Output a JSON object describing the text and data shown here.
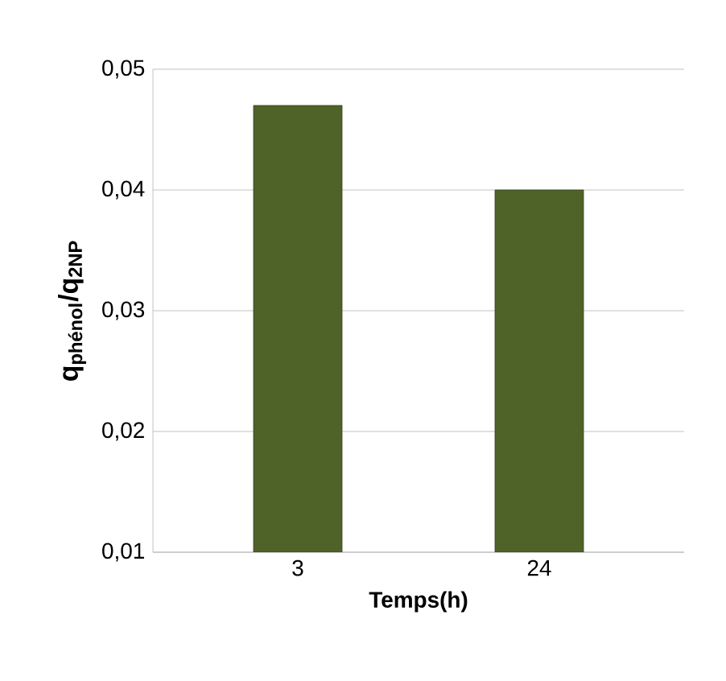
{
  "chart_data": {
    "type": "bar",
    "xlabel": "Temps(h)",
    "ylabel": "q$_{phénol}$/q$_{2NP}$",
    "categories": [
      "3",
      "24"
    ],
    "values": [
      0.047,
      0.04
    ],
    "color": "#4f6228",
    "ylim": [
      0.01,
      0.05
    ],
    "yticks": [
      {
        "value": 0.01,
        "label": "0,01"
      },
      {
        "value": 0.02,
        "label": "0,02"
      },
      {
        "value": 0.03,
        "label": "0,03"
      },
      {
        "value": 0.04,
        "label": "0,04"
      },
      {
        "value": 0.05,
        "label": "0,05"
      }
    ],
    "grid": true
  }
}
